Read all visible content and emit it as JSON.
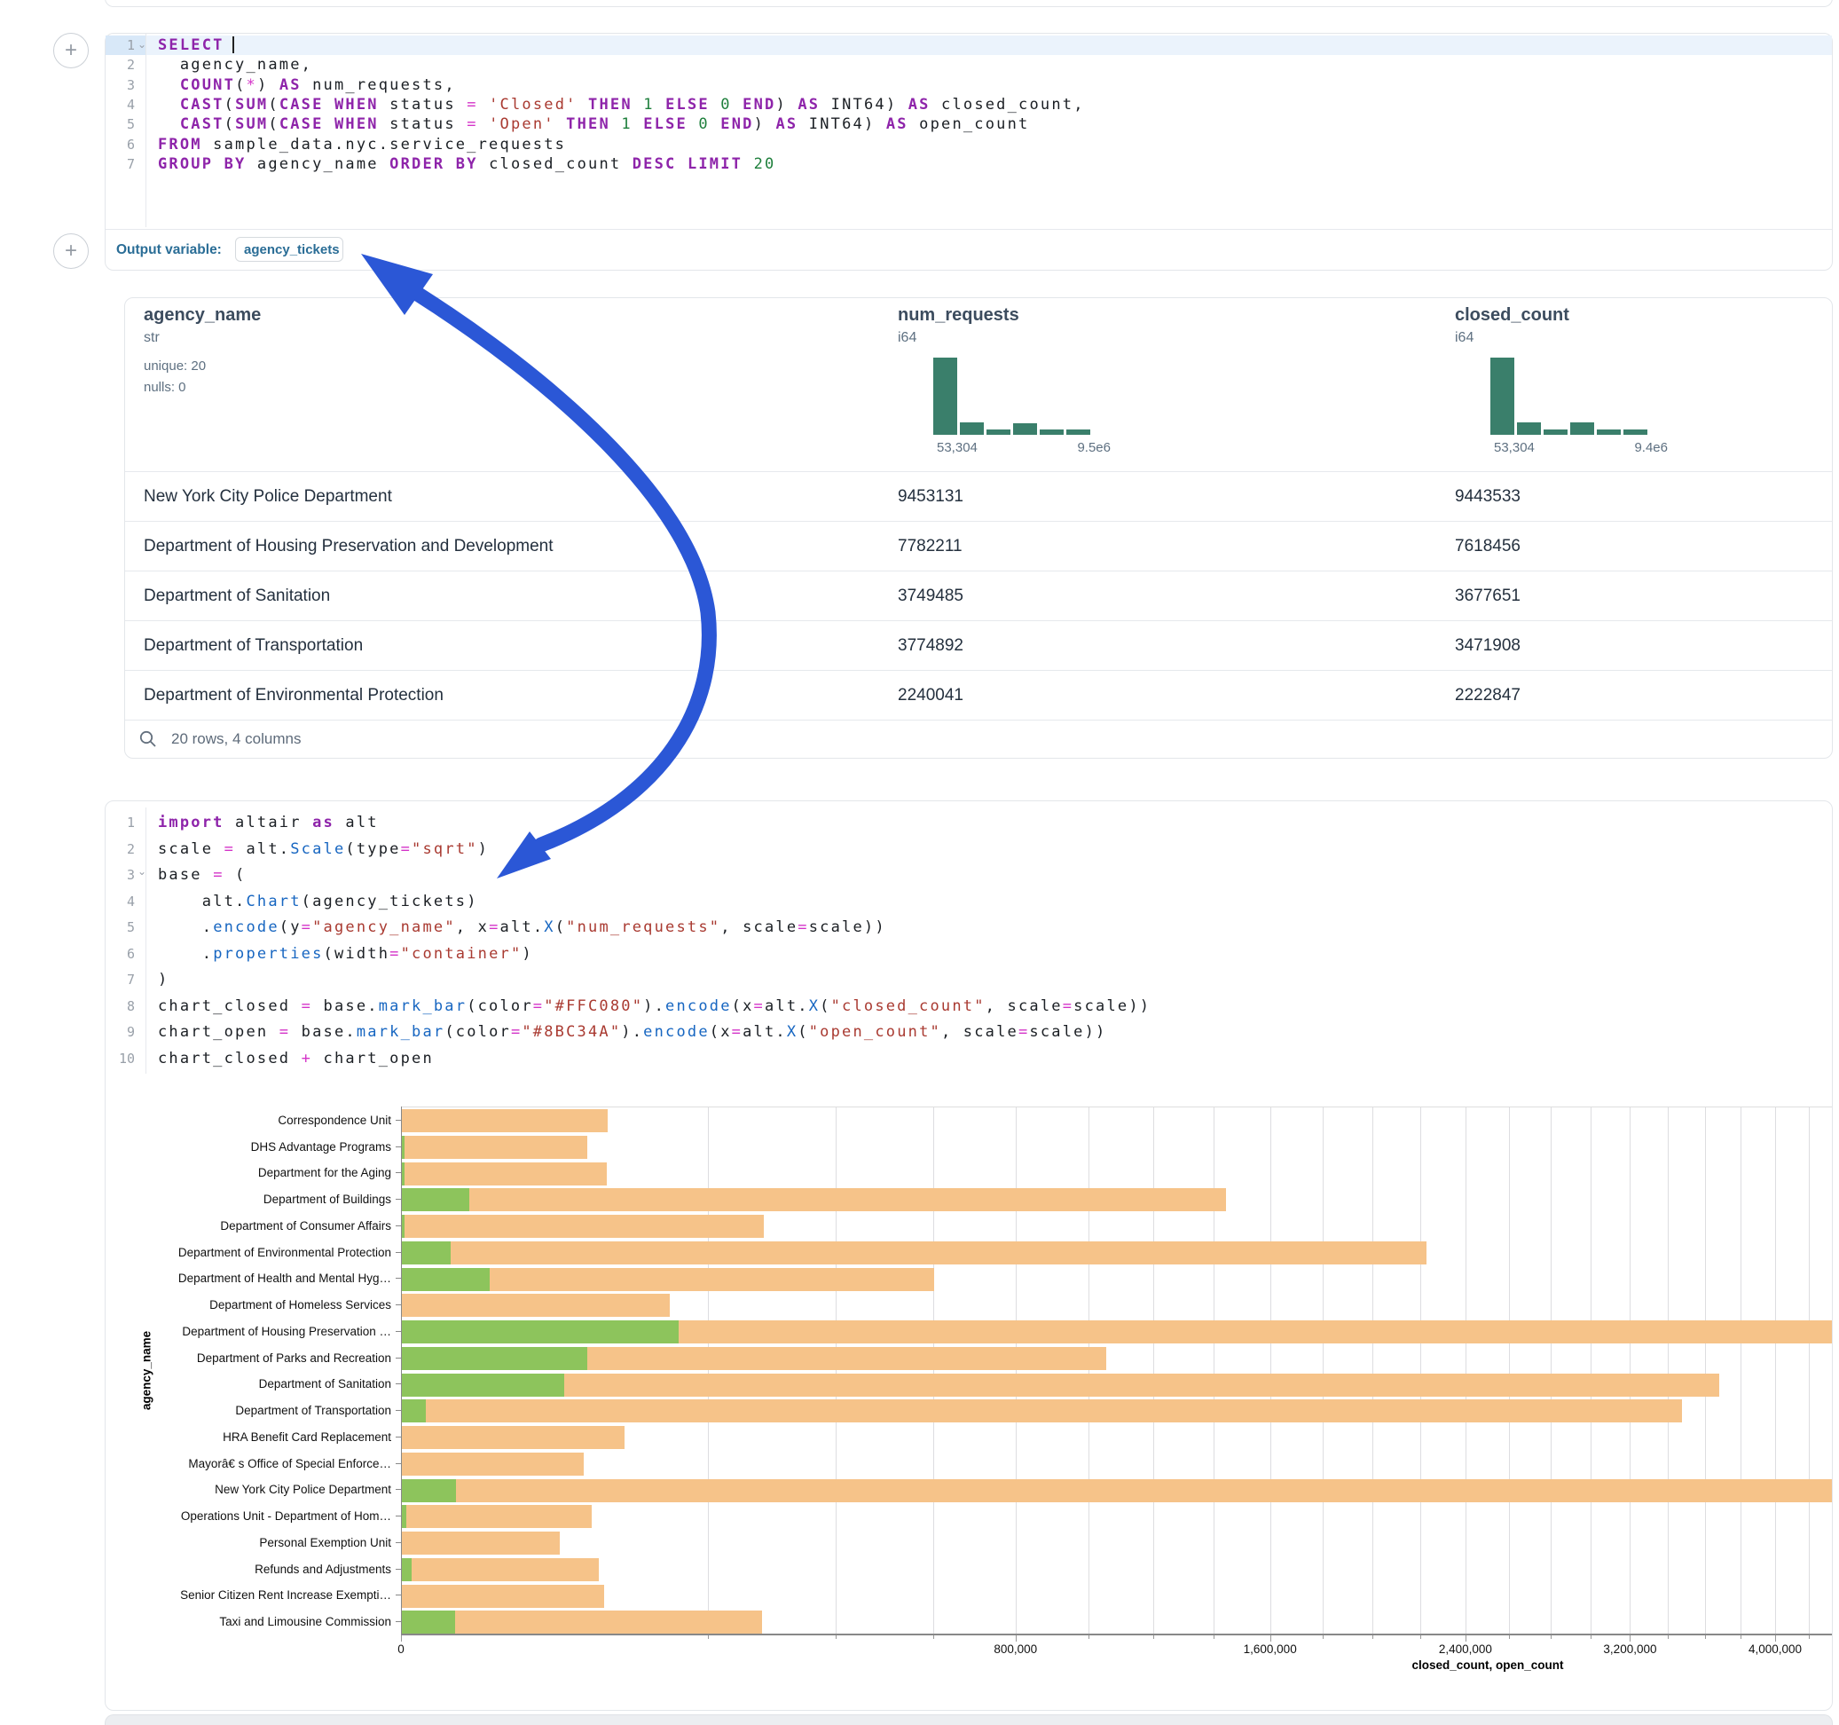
{
  "colors": {
    "arrow": "#2B57D6",
    "histogram": "#3A7F6B",
    "accent_teal": "#2A6D96",
    "bar_closed_rendered": "#F6C389",
    "bar_open_rendered": "#8DC45C",
    "card_border": "#E3E6EA"
  },
  "sql_cell": {
    "lines": [
      {
        "n": "1",
        "fold": true,
        "tokens": [
          [
            "k",
            "SELECT"
          ],
          [
            "caret",
            ""
          ]
        ]
      },
      {
        "n": "2",
        "tokens": [
          [
            "t",
            "  agency_name,"
          ]
        ]
      },
      {
        "n": "3",
        "tokens": [
          [
            "t",
            "  "
          ],
          [
            "k",
            "COUNT"
          ],
          [
            "t",
            "("
          ],
          [
            "o",
            "*"
          ],
          [
            "t",
            ") "
          ],
          [
            "k",
            "AS"
          ],
          [
            "t",
            " num_requests,"
          ]
        ]
      },
      {
        "n": "4",
        "tokens": [
          [
            "t",
            "  "
          ],
          [
            "k",
            "CAST"
          ],
          [
            "t",
            "("
          ],
          [
            "k",
            "SUM"
          ],
          [
            "t",
            "("
          ],
          [
            "k",
            "CASE"
          ],
          [
            "t",
            " "
          ],
          [
            "k",
            "WHEN"
          ],
          [
            "t",
            " status "
          ],
          [
            "o",
            "="
          ],
          [
            "t",
            " "
          ],
          [
            "s",
            "'Closed'"
          ],
          [
            "t",
            " "
          ],
          [
            "k",
            "THEN"
          ],
          [
            "t",
            " "
          ],
          [
            "n",
            "1"
          ],
          [
            "t",
            " "
          ],
          [
            "k",
            "ELSE"
          ],
          [
            "t",
            " "
          ],
          [
            "n",
            "0"
          ],
          [
            "t",
            " "
          ],
          [
            "k",
            "END"
          ],
          [
            "t",
            ") "
          ],
          [
            "k",
            "AS"
          ],
          [
            "t",
            " INT64) "
          ],
          [
            "k",
            "AS"
          ],
          [
            "t",
            " closed_count,"
          ]
        ]
      },
      {
        "n": "5",
        "tokens": [
          [
            "t",
            "  "
          ],
          [
            "k",
            "CAST"
          ],
          [
            "t",
            "("
          ],
          [
            "k",
            "SUM"
          ],
          [
            "t",
            "("
          ],
          [
            "k",
            "CASE"
          ],
          [
            "t",
            " "
          ],
          [
            "k",
            "WHEN"
          ],
          [
            "t",
            " status "
          ],
          [
            "o",
            "="
          ],
          [
            "t",
            " "
          ],
          [
            "s",
            "'Open'"
          ],
          [
            "t",
            " "
          ],
          [
            "k",
            "THEN"
          ],
          [
            "t",
            " "
          ],
          [
            "n",
            "1"
          ],
          [
            "t",
            " "
          ],
          [
            "k",
            "ELSE"
          ],
          [
            "t",
            " "
          ],
          [
            "n",
            "0"
          ],
          [
            "t",
            " "
          ],
          [
            "k",
            "END"
          ],
          [
            "t",
            ") "
          ],
          [
            "k",
            "AS"
          ],
          [
            "t",
            " INT64) "
          ],
          [
            "k",
            "AS"
          ],
          [
            "t",
            " open_count"
          ]
        ]
      },
      {
        "n": "6",
        "tokens": [
          [
            "k",
            "FROM"
          ],
          [
            "t",
            " sample_data.nyc.service_requests"
          ]
        ]
      },
      {
        "n": "7",
        "tokens": [
          [
            "k",
            "GROUP"
          ],
          [
            "t",
            " "
          ],
          [
            "k",
            "BY"
          ],
          [
            "t",
            " agency_name "
          ],
          [
            "k",
            "ORDER"
          ],
          [
            "t",
            " "
          ],
          [
            "k",
            "BY"
          ],
          [
            "t",
            " closed_count "
          ],
          [
            "k",
            "DESC"
          ],
          [
            "t",
            " "
          ],
          [
            "k",
            "LIMIT"
          ],
          [
            "t",
            " "
          ],
          [
            "n",
            "20"
          ]
        ]
      }
    ]
  },
  "output_variable": {
    "label": "Output variable:",
    "value": "agency_tickets"
  },
  "table": {
    "columns": [
      {
        "name": "agency_name",
        "type": "str",
        "stats": [
          "unique: 20",
          "nulls: 0"
        ]
      },
      {
        "name": "num_requests",
        "type": "i64",
        "hist": {
          "bars": [
            100,
            16,
            7,
            15,
            7,
            7
          ],
          "min": "53,304",
          "max": "9.5e6"
        }
      },
      {
        "name": "closed_count",
        "type": "i64",
        "hist": {
          "bars": [
            100,
            16,
            7,
            16,
            7,
            7
          ],
          "min": "53,304",
          "max": "9.4e6"
        }
      }
    ],
    "rows": [
      [
        "New York City Police Department",
        "9453131",
        "9443533"
      ],
      [
        "Department of Housing Preservation and Development",
        "7782211",
        "7618456"
      ],
      [
        "Department of Sanitation",
        "3749485",
        "3677651"
      ],
      [
        "Department of Transportation",
        "3774892",
        "3471908"
      ],
      [
        "Department of Environmental Protection",
        "2240041",
        "2222847"
      ]
    ],
    "footer": "20 rows, 4 columns"
  },
  "python_cell": {
    "lines": [
      {
        "n": "1",
        "tokens": [
          [
            "k",
            "import"
          ],
          [
            "t",
            " altair "
          ],
          [
            "k",
            "as"
          ],
          [
            "t",
            " alt"
          ]
        ]
      },
      {
        "n": "2",
        "tokens": [
          [
            "t",
            "scale "
          ],
          [
            "o",
            "="
          ],
          [
            "t",
            " alt."
          ],
          [
            "f",
            "Scale"
          ],
          [
            "t",
            "(type"
          ],
          [
            "o",
            "="
          ],
          [
            "s",
            "\"sqrt\""
          ],
          [
            "t",
            ")"
          ]
        ]
      },
      {
        "n": "3",
        "fold": true,
        "tokens": [
          [
            "t",
            "base "
          ],
          [
            "o",
            "="
          ],
          [
            "t",
            " ("
          ]
        ]
      },
      {
        "n": "4",
        "tokens": [
          [
            "t",
            "    alt."
          ],
          [
            "f",
            "Chart"
          ],
          [
            "t",
            "(agency_tickets)"
          ]
        ]
      },
      {
        "n": "5",
        "tokens": [
          [
            "t",
            "    ."
          ],
          [
            "f",
            "encode"
          ],
          [
            "t",
            "(y"
          ],
          [
            "o",
            "="
          ],
          [
            "s",
            "\"agency_name\""
          ],
          [
            "t",
            ", x"
          ],
          [
            "o",
            "="
          ],
          [
            "t",
            "alt."
          ],
          [
            "f",
            "X"
          ],
          [
            "t",
            "("
          ],
          [
            "s",
            "\"num_requests\""
          ],
          [
            "t",
            ", scale"
          ],
          [
            "o",
            "="
          ],
          [
            "t",
            "scale))"
          ]
        ]
      },
      {
        "n": "6",
        "tokens": [
          [
            "t",
            "    ."
          ],
          [
            "f",
            "properties"
          ],
          [
            "t",
            "(width"
          ],
          [
            "o",
            "="
          ],
          [
            "s",
            "\"container\""
          ],
          [
            "t",
            ")"
          ]
        ]
      },
      {
        "n": "7",
        "tokens": [
          [
            "t",
            ")"
          ]
        ]
      },
      {
        "n": "8",
        "tokens": [
          [
            "t",
            "chart_closed "
          ],
          [
            "o",
            "="
          ],
          [
            "t",
            " base."
          ],
          [
            "f",
            "mark_bar"
          ],
          [
            "t",
            "(color"
          ],
          [
            "o",
            "="
          ],
          [
            "s",
            "\"#FFC080\""
          ],
          [
            "t",
            ")."
          ],
          [
            "f",
            "encode"
          ],
          [
            "t",
            "(x"
          ],
          [
            "o",
            "="
          ],
          [
            "t",
            "alt."
          ],
          [
            "f",
            "X"
          ],
          [
            "t",
            "("
          ],
          [
            "s",
            "\"closed_count\""
          ],
          [
            "t",
            ", scale"
          ],
          [
            "o",
            "="
          ],
          [
            "t",
            "scale))"
          ]
        ]
      },
      {
        "n": "9",
        "tokens": [
          [
            "t",
            "chart_open "
          ],
          [
            "o",
            "="
          ],
          [
            "t",
            " base."
          ],
          [
            "f",
            "mark_bar"
          ],
          [
            "t",
            "(color"
          ],
          [
            "o",
            "="
          ],
          [
            "s",
            "\"#8BC34A\""
          ],
          [
            "t",
            ")."
          ],
          [
            "f",
            "encode"
          ],
          [
            "t",
            "(x"
          ],
          [
            "o",
            "="
          ],
          [
            "t",
            "alt."
          ],
          [
            "f",
            "X"
          ],
          [
            "t",
            "("
          ],
          [
            "s",
            "\"open_count\""
          ],
          [
            "t",
            ", scale"
          ],
          [
            "o",
            "="
          ],
          [
            "t",
            "scale))"
          ]
        ]
      },
      {
        "n": "10",
        "tokens": [
          [
            "t",
            "chart_closed "
          ],
          [
            "o",
            "+"
          ],
          [
            "t",
            " chart_open"
          ]
        ]
      }
    ]
  },
  "chart_data": {
    "type": "bar",
    "orientation": "horizontal",
    "x_scale": "sqrt",
    "xlabel": "closed_count, open_count",
    "ylabel": "agency_name",
    "categories": [
      "Correspondence Unit",
      "DHS Advantage Programs",
      "Department for the Aging",
      "Department of Buildings",
      "Department of Consumer Affairs",
      "Department of Environmental Protection",
      "Department of Health and Mental Hyg…",
      "Department of Homeless Services",
      "Department of Housing Preservation …",
      "Department of Parks and Recreation",
      "Department of Sanitation",
      "Department of Transportation",
      "HRA Benefit Card Replacement",
      "Mayorâ€ s Office of Special Enforce…",
      "New York City Police Department",
      "Operations Unit - Department of Hom…",
      "Personal Exemption Unit",
      "Refunds and Adjustments",
      "Senior Citizen Rent Increase Exempti…",
      "Taxi and Limousine Commission"
    ],
    "series": [
      {
        "name": "closed_count",
        "color": "#F6C389",
        "source_color": "#FFC080",
        "values": [
          90000,
          73000,
          89000,
          1440000,
          277000,
          2222847,
          600000,
          152000,
          7618456,
          1050000,
          3677651,
          3471908,
          105000,
          70000,
          9443533,
          76000,
          53000,
          82000,
          87000,
          275000
        ]
      },
      {
        "name": "open_count",
        "color": "#8DC45C",
        "source_color": "#8BC34A",
        "values": [
          0,
          20,
          20,
          9700,
          20,
          5000,
          16300,
          0,
          162000,
          73000,
          56000,
          1200,
          0,
          0,
          6200,
          40,
          0,
          200,
          0,
          6000
        ]
      }
    ],
    "x_ticks": [
      0,
      800000,
      1600000,
      2400000,
      3200000,
      4000000
    ],
    "x_tick_labels": [
      "0",
      "800,000",
      "1,600,000",
      "2,400,000",
      "3,200,000",
      "4,000,000"
    ],
    "grid_step": 200000,
    "legend": "none"
  }
}
